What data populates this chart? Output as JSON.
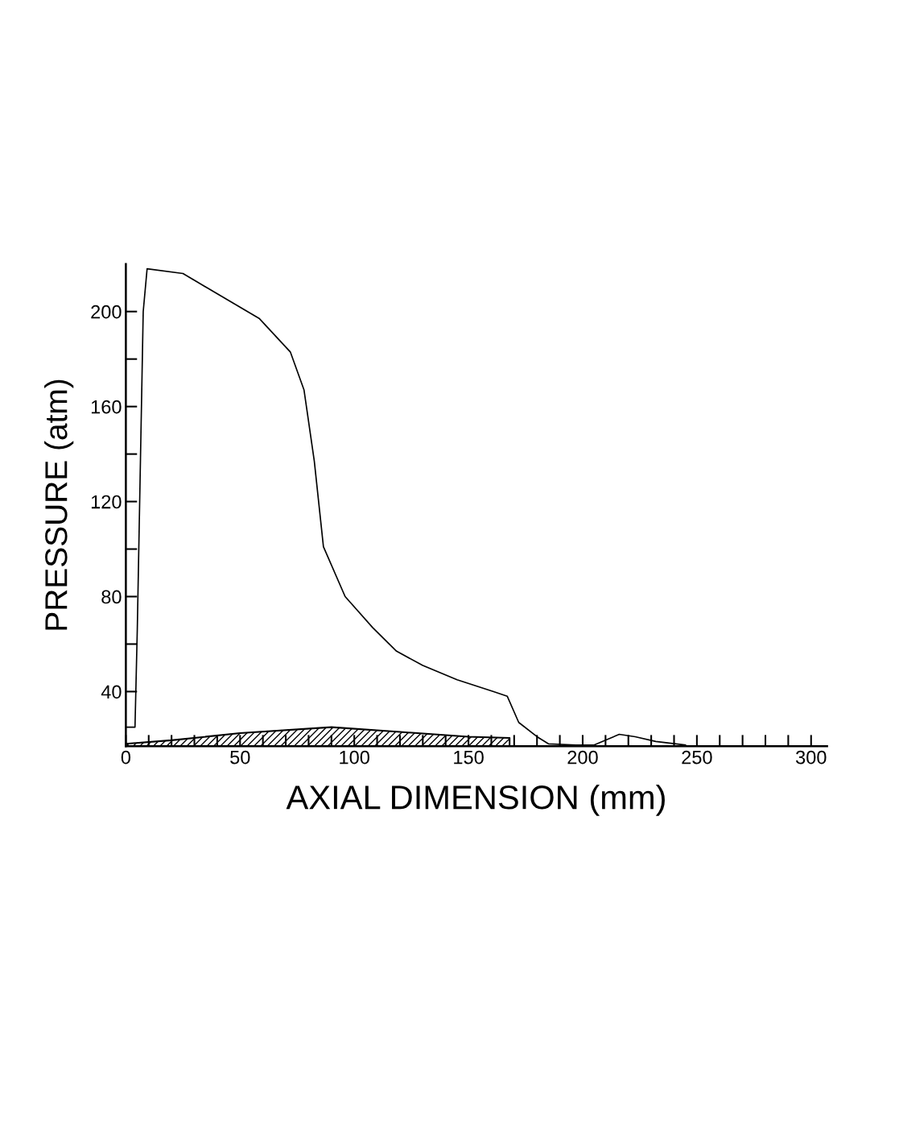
{
  "chart_data": {
    "type": "line",
    "xlabel": "AXIAL DIMENSION (mm)",
    "ylabel": "PRESSURE (atm)",
    "series": [
      {
        "color": "#000000",
        "x": [
          0,
          4,
          5,
          6.4,
          7.6,
          9.3,
          25,
          32,
          58.5,
          72,
          78,
          82.5,
          86.5,
          96,
          108,
          118.5,
          130,
          145,
          161,
          167,
          172,
          180,
          185,
          197,
          205,
          216,
          223,
          232,
          245
        ],
        "values": [
          25,
          25,
          66,
          138,
          200,
          218,
          216,
          212,
          197,
          183,
          167,
          137,
          101,
          80,
          67,
          57,
          51,
          45,
          40,
          38,
          27,
          21,
          18,
          17.5,
          17.5,
          22,
          21,
          19,
          17.5
        ]
      },
      {
        "type": "area",
        "color": "#000000",
        "x": [
          0,
          20,
          50,
          90,
          120,
          150,
          168
        ],
        "values": [
          18,
          19.5,
          22.5,
          25,
          23,
          21,
          20.5
        ]
      }
    ],
    "xlim": [
      0,
      307
    ],
    "ylim": [
      17,
      220
    ],
    "xticks": [
      0,
      {
        "value": 10,
        "label": null
      },
      {
        "value": 20,
        "label": null
      },
      {
        "value": 30,
        "label": null
      },
      {
        "value": 40,
        "label": null
      },
      50,
      {
        "value": 60,
        "label": null
      },
      {
        "value": 70,
        "label": null
      },
      {
        "value": 80,
        "label": null
      },
      {
        "value": 90,
        "label": null
      },
      100,
      {
        "value": 110,
        "label": null
      },
      {
        "value": 120,
        "label": null
      },
      {
        "value": 130,
        "label": null
      },
      {
        "value": 140,
        "label": null
      },
      150,
      {
        "value": 160,
        "label": null
      },
      {
        "value": 170,
        "label": null
      },
      {
        "value": 180,
        "label": null
      },
      {
        "value": 190,
        "label": null
      },
      200,
      {
        "value": 210,
        "label": null
      },
      {
        "value": 220,
        "label": null
      },
      {
        "value": 230,
        "label": null
      },
      {
        "value": 240,
        "label": null
      },
      250,
      {
        "value": 260,
        "label": null
      },
      {
        "value": 270,
        "label": null
      },
      {
        "value": 280,
        "label": null
      },
      {
        "value": 290,
        "label": null
      },
      300
    ],
    "yticks": [
      40,
      {
        "value": 60,
        "label": null
      },
      80,
      {
        "value": 100,
        "label": null
      },
      120,
      {
        "value": 140,
        "label": null
      },
      160,
      {
        "value": 180,
        "label": null
      },
      200
    ],
    "grid": false,
    "marker": "none",
    "line_style": "solid"
  }
}
